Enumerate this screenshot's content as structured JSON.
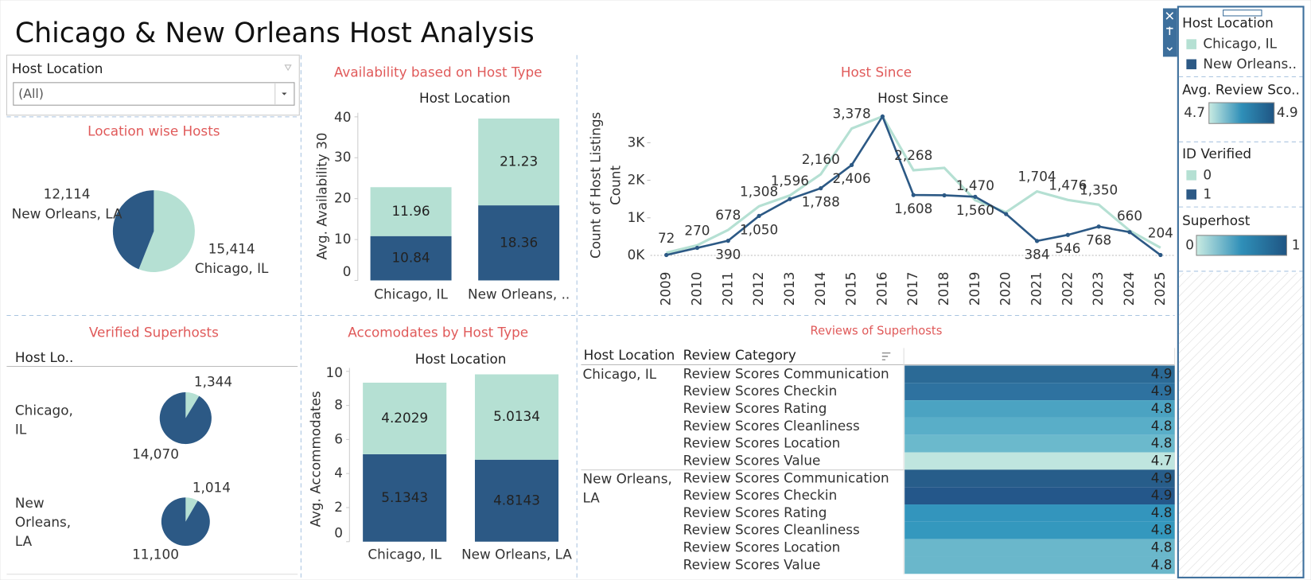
{
  "title": "Chicago & New Orleans Host Analysis",
  "filter": {
    "label": "Host Location",
    "value": "(All)"
  },
  "legends": [
    {
      "title": "Host Location",
      "items": [
        {
          "label": "Chicago, IL",
          "color": "#b5e0d3"
        },
        {
          "label": "New Orleans..",
          "color": "#2c5985"
        }
      ]
    },
    {
      "title": "Avg. Review Sco..",
      "range": [
        4.7,
        4.9
      ],
      "colors": [
        "#c9ebe2",
        "#2f8fb8",
        "#1f5583"
      ]
    },
    {
      "title": "ID Verified",
      "items": [
        {
          "label": "0",
          "color": "#b5e0d3"
        },
        {
          "label": "1",
          "color": "#2c5985"
        }
      ]
    },
    {
      "title": "Superhost",
      "range": [
        0,
        1
      ],
      "colors": [
        "#c9ebe2",
        "#2f8fb8",
        "#1f5583"
      ]
    }
  ],
  "chart_data": [
    {
      "type": "pie",
      "title": "Location wise Hosts",
      "categories": [
        "Chicago, IL",
        "New Orleans, LA"
      ],
      "values": [
        15414,
        12114
      ],
      "value_labels": [
        "15,414",
        "12,114"
      ],
      "colors": [
        "#b5e0d3",
        "#2c5985"
      ]
    },
    {
      "type": "bar",
      "title": "Availability based on Host Type",
      "header": "Host Location",
      "y_label": "Avg. Availability 30",
      "categories": [
        "Chicago, IL",
        "New Orleans, .."
      ],
      "series": [
        {
          "color": "#2c5985",
          "values": [
            10.84,
            18.36
          ]
        },
        {
          "color": "#b5e0d3",
          "values": [
            11.96,
            21.23
          ]
        }
      ],
      "ylim": [
        0,
        41
      ],
      "yticks": [
        0,
        10,
        20,
        30,
        40
      ]
    },
    {
      "type": "line",
      "title": "Host Since",
      "header": "Host Since",
      "y_label": [
        "Count of Host Listings",
        "Count"
      ],
      "x": [
        2009,
        2010,
        2011,
        2012,
        2013,
        2014,
        2015,
        2016,
        2017,
        2018,
        2019,
        2020,
        2021,
        2022,
        2023,
        2024,
        2025
      ],
      "series": [
        {
          "color": "#b5e0d3",
          "values": [
            72,
            270,
            678,
            1308,
            1596,
            2160,
            3378,
            3700,
            2268,
            2330,
            1470,
            1150,
            1704,
            1476,
            1350,
            660,
            204
          ],
          "value_labels": [
            "72",
            "270",
            "678",
            "1,308",
            "1,596",
            "2,160",
            "3,378",
            null,
            "2,268",
            null,
            "1,470",
            null,
            "1,704",
            "1,476",
            "1,350",
            "660",
            "204"
          ]
        },
        {
          "color": "#2c5985",
          "values": [
            10,
            200,
            390,
            1050,
            1500,
            1788,
            2406,
            3700,
            1608,
            1600,
            1560,
            1100,
            384,
            546,
            768,
            620,
            10
          ],
          "value_labels": [
            null,
            null,
            "390",
            "1,050",
            null,
            "1,788",
            "2,406",
            null,
            "1,608",
            null,
            "1,560",
            null,
            "384",
            "546",
            "768",
            null,
            null
          ]
        }
      ],
      "ylim": [
        0,
        3900
      ],
      "yticks": [
        {
          "value": 0,
          "label": "0K"
        },
        {
          "value": 1000,
          "label": "1K"
        },
        {
          "value": 2000,
          "label": "2K"
        },
        {
          "value": 3000,
          "label": "3K"
        }
      ]
    },
    {
      "type": "pie-grid",
      "title": "Verified Superhosts",
      "header": "Host Lo..",
      "colors": [
        "#b5e0d3",
        "#2c5985"
      ],
      "rows": [
        {
          "label": "Chicago, IL",
          "values": [
            1344,
            14070
          ],
          "value_labels": [
            "1,344",
            "14,070"
          ]
        },
        {
          "label": "New Orleans, LA",
          "values": [
            1014,
            11100
          ],
          "value_labels": [
            "1,014",
            "11,100"
          ]
        }
      ]
    },
    {
      "type": "bar",
      "title": "Accomodates by Host Type",
      "header": "Host Location",
      "y_label": "Avg. Accommodates",
      "categories": [
        "Chicago, IL",
        "New Orleans, LA"
      ],
      "series": [
        {
          "color": "#2c5985",
          "values": [
            5.1343,
            4.8143
          ]
        },
        {
          "color": "#b5e0d3",
          "values": [
            4.2029,
            5.0134
          ]
        }
      ],
      "ylim": [
        0,
        10.2
      ],
      "yticks": [
        0,
        2,
        4,
        6,
        8,
        10
      ]
    },
    {
      "type": "heatmap",
      "title": "Reviews of Superhosts",
      "columns": [
        "Host Location",
        "Review Category"
      ],
      "groups": [
        {
          "label": "Chicago, IL",
          "categories": [
            "Review Scores Communication",
            "Review Scores Checkin",
            "Review Scores Rating",
            "Review Scores Cleanliness",
            "Review Scores Location",
            "Review Scores Value"
          ],
          "values": [
            4.9,
            4.9,
            4.8,
            4.8,
            4.8,
            4.7
          ],
          "colors": [
            "#2b6a96",
            "#2e72a0",
            "#4ba3c2",
            "#59aec8",
            "#6bb9cc",
            "#bfe5df"
          ]
        },
        {
          "label": "New Orleans, LA",
          "categories": [
            "Review Scores Communication",
            "Review Scores Checkin",
            "Review Scores Rating",
            "Review Scores Cleanliness",
            "Review Scores Location",
            "Review Scores Value"
          ],
          "values": [
            4.9,
            4.9,
            4.8,
            4.8,
            4.8,
            4.8
          ],
          "colors": [
            "#275d8a",
            "#24578a",
            "#3395bd",
            "#3498be",
            "#6ab7cb",
            "#6ab7cb"
          ]
        }
      ]
    }
  ]
}
